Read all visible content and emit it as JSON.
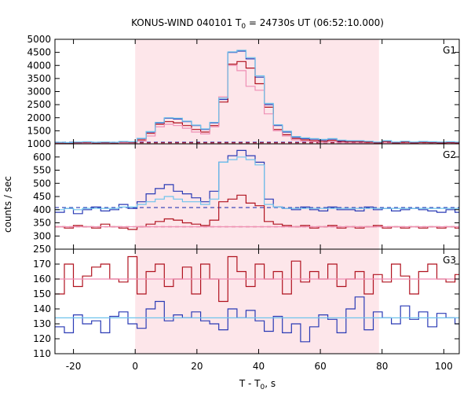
{
  "chart_data": {
    "type": "line",
    "title": "KONUS-WIND 040101 T",
    "title_sub": "0",
    "title_rest": " = 24730s UT (06:52:10.000)",
    "xlabel": "T - T",
    "xlabel_sub": "0",
    "xlabel_rest": ", s",
    "ylabel": "counts / sec",
    "xlim": [
      -26,
      105
    ],
    "x_ticks": [
      -20,
      0,
      20,
      40,
      60,
      80,
      100
    ],
    "x_tick_labels": [
      "-20",
      "0",
      "20",
      "40",
      "60",
      "80",
      "100"
    ],
    "shaded_interval": [
      0,
      79
    ],
    "colors": {
      "shade": "#fde6ea",
      "blue": "#2a3ab5",
      "cyan": "#6ec3ec",
      "red": "#b0121f",
      "pink": "#ef8fb5"
    },
    "bin_width": 2.944,
    "x_start": -25.9,
    "panels": [
      {
        "label": "G1",
        "ylim": [
          1000,
          5000
        ],
        "y_ticks": [
          1000,
          1500,
          2000,
          2500,
          3000,
          3500,
          4000,
          4500,
          5000
        ],
        "y_tick_labels": [
          "1000",
          "1500",
          "2000",
          "2500",
          "3000",
          "3500",
          "4000",
          "4500",
          "5000"
        ],
        "series": [
          {
            "color": "blue",
            "values": [
              1050,
              1040,
              1060,
              1070,
              1050,
              1060,
              1050,
              1080,
              1070,
              1200,
              1450,
              1800,
              1980,
              1950,
              1850,
              1700,
              1550,
              1800,
              2700,
              4500,
              4550,
              4250,
              3550,
              2500,
              1700,
              1450,
              1250,
              1200,
              1180,
              1150,
              1180,
              1120,
              1100,
              1100,
              1080,
              1050,
              1100,
              1050,
              1080,
              1050,
              1070,
              1060,
              1050,
              1060,
              1050
            ]
          },
          {
            "color": "red",
            "values": [
              1020,
              1010,
              1030,
              1040,
              1020,
              1030,
              1020,
              1050,
              1040,
              1150,
              1400,
              1750,
              1850,
              1800,
              1700,
              1550,
              1450,
              1700,
              2600,
              4050,
              4150,
              3900,
              3300,
              2400,
              1550,
              1350,
              1200,
              1150,
              1120,
              1100,
              1130,
              1090,
              1080,
              1080,
              1060,
              1030,
              1080,
              1030,
              1060,
              1030,
              1050,
              1040,
              1030,
              1040,
              1030
            ]
          },
          {
            "color": "pink",
            "values": [
              1000,
              990,
              1010,
              1020,
              1000,
              1010,
              1000,
              1030,
              1020,
              1100,
              1300,
              1650,
              1750,
              1700,
              1600,
              1450,
              1380,
              1650,
              2800,
              4000,
              3800,
              3200,
              3050,
              2150,
              1500,
              1300,
              1150,
              1100,
              1080,
              1050,
              1080,
              1040,
              1030,
              1030,
              1020,
              1000,
              1030,
              1000,
              1020,
              1000,
              1010,
              1000,
              990,
              1000,
              990
            ]
          },
          {
            "color": "cyan",
            "values": [
              1060,
              1050,
              1070,
              1080,
              1060,
              1070,
              1060,
              1090,
              1080,
              1210,
              1470,
              1820,
              2000,
              1980,
              1870,
              1720,
              1570,
              1820,
              2750,
              4520,
              4580,
              4300,
              3600,
              2550,
              1730,
              1480,
              1280,
              1230,
              1200,
              1170,
              1200,
              1140,
              1120,
              1120,
              1100,
              1070,
              1120,
              1070,
              1100,
              1070,
              1090,
              1080,
              1070,
              1080,
              1070
            ]
          }
        ],
        "baselines": [
          {
            "color": "blue",
            "y": 1060,
            "dash": true
          },
          {
            "color": "red",
            "y": 1040,
            "dash": true
          }
        ]
      },
      {
        "label": "G2",
        "ylim": [
          250,
          650
        ],
        "y_ticks": [
          250,
          300,
          350,
          400,
          450,
          500,
          550,
          600
        ],
        "y_tick_labels": [
          "250",
          "300",
          "350",
          "400",
          "450",
          "500",
          "550",
          "600"
        ],
        "series": [
          {
            "color": "blue",
            "values": [
              390,
              405,
              385,
              400,
              410,
              395,
              400,
              420,
              405,
              430,
              460,
              480,
              495,
              470,
              460,
              445,
              430,
              470,
              580,
              605,
              625,
              605,
              580,
              440,
              410,
              405,
              400,
              410,
              400,
              395,
              410,
              400,
              400,
              395,
              410,
              400,
              405,
              395,
              400,
              405,
              400,
              395,
              390,
              400,
              390
            ]
          },
          {
            "color": "cyan",
            "values": [
              400,
              405,
              400,
              405,
              405,
              405,
              405,
              410,
              410,
              420,
              430,
              440,
              450,
              440,
              430,
              430,
              420,
              440,
              580,
              590,
              600,
              590,
              570,
              420,
              410,
              405,
              405,
              405,
              405,
              405,
              405,
              405,
              405,
              405,
              405,
              405,
              405,
              405,
              405,
              405,
              405,
              405,
              405,
              405,
              405
            ]
          },
          {
            "color": "red",
            "values": [
              335,
              330,
              340,
              335,
              330,
              345,
              335,
              330,
              325,
              335,
              345,
              355,
              365,
              360,
              350,
              345,
              340,
              360,
              430,
              440,
              455,
              425,
              415,
              355,
              345,
              340,
              335,
              340,
              330,
              335,
              340,
              330,
              335,
              330,
              335,
              340,
              330,
              335,
              330,
              335,
              330,
              335,
              330,
              335,
              330
            ]
          },
          {
            "color": "pink",
            "values": [
              335,
              335,
              335,
              335,
              335,
              335,
              335,
              335,
              335,
              335,
              335,
              335,
              335,
              335,
              335,
              335,
              335,
              335,
              335,
              335,
              335,
              335,
              335,
              335,
              335,
              335,
              335,
              335,
              335,
              335,
              335,
              335,
              335,
              335,
              335,
              335,
              335,
              335,
              335,
              335,
              335,
              335,
              335,
              335,
              335
            ]
          }
        ],
        "baselines": [
          {
            "color": "blue",
            "y": 408,
            "dash": true
          },
          {
            "color": "red",
            "y": 335,
            "dash": true
          }
        ]
      },
      {
        "label": "G3",
        "ylim": [
          110,
          180
        ],
        "y_ticks": [
          110,
          120,
          130,
          140,
          150,
          160,
          170
        ],
        "y_tick_labels": [
          "110",
          "120",
          "130",
          "140",
          "150",
          "160",
          "170"
        ],
        "series": [
          {
            "color": "red",
            "values": [
              150,
              170,
              155,
              162,
              168,
              170,
              160,
              158,
              175,
              150,
              165,
              170,
              155,
              160,
              168,
              150,
              170,
              160,
              145,
              175,
              165,
              155,
              170,
              160,
              165,
              150,
              172,
              158,
              165,
              160,
              170,
              155,
              160,
              165,
              150,
              163,
              158,
              170,
              162,
              150,
              165,
              170,
              160,
              158,
              163
            ]
          },
          {
            "color": "blue",
            "values": [
              128,
              124,
              136,
              130,
              132,
              124,
              135,
              138,
              130,
              127,
              140,
              145,
              132,
              136,
              134,
              138,
              132,
              130,
              126,
              140,
              134,
              139,
              132,
              125,
              135,
              124,
              130,
              118,
              128,
              136,
              133,
              124,
              140,
              148,
              126,
              138,
              134,
              130,
              142,
              133,
              138,
              128,
              137,
              134,
              130
            ]
          },
          {
            "color": "pink",
            "values": [
              160,
              160,
              160,
              160,
              160,
              160,
              160,
              160,
              160,
              160,
              160,
              160,
              160,
              160,
              160,
              160,
              160,
              160,
              160,
              160,
              160,
              160,
              160,
              160,
              160,
              160,
              160,
              160,
              160,
              160,
              160,
              160,
              160,
              160,
              160,
              160,
              160,
              160,
              160,
              160,
              160,
              160,
              160,
              160,
              160
            ]
          },
          {
            "color": "cyan",
            "values": [
              134,
              134,
              134,
              134,
              134,
              134,
              134,
              134,
              134,
              134,
              134,
              134,
              134,
              134,
              134,
              134,
              134,
              134,
              134,
              134,
              134,
              134,
              134,
              134,
              134,
              134,
              134,
              134,
              134,
              134,
              134,
              134,
              134,
              134,
              134,
              134,
              134,
              134,
              134,
              134,
              134,
              134,
              134,
              134,
              134
            ]
          }
        ],
        "baselines": []
      }
    ]
  }
}
